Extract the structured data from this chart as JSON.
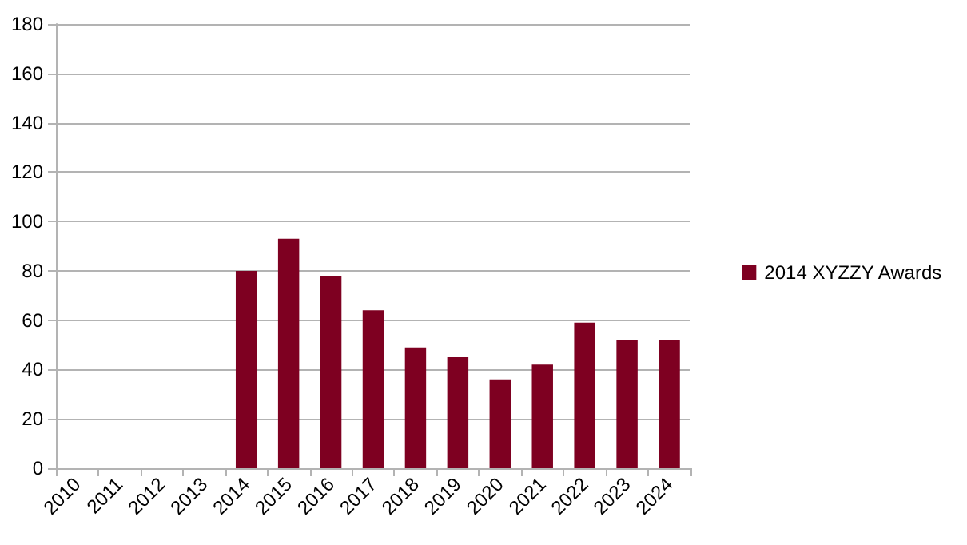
{
  "chart_data": {
    "type": "bar",
    "categories": [
      "2010",
      "2011",
      "2012",
      "2013",
      "2014",
      "2015",
      "2016",
      "2017",
      "2018",
      "2019",
      "2020",
      "2021",
      "2022",
      "2023",
      "2024"
    ],
    "series": [
      {
        "name": "2014 XYZZY Awards",
        "color": "#7e0021",
        "values": [
          null,
          null,
          null,
          null,
          80,
          93,
          78,
          64,
          49,
          45,
          36,
          42,
          59,
          52,
          52
        ]
      }
    ],
    "ylim": [
      0,
      180
    ],
    "yticks": [
      0,
      20,
      40,
      60,
      80,
      100,
      120,
      140,
      160,
      180
    ],
    "grid": "y",
    "legend": "right"
  }
}
